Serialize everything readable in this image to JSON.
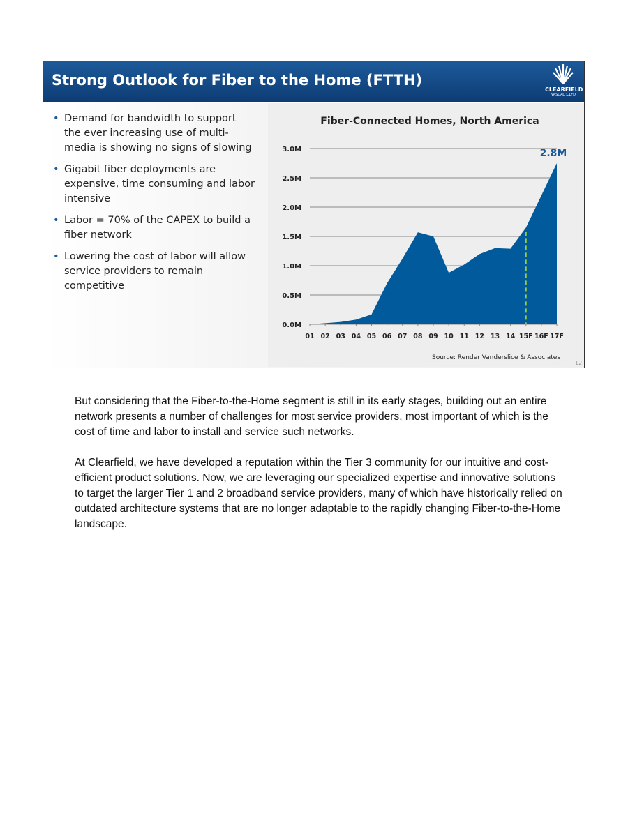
{
  "slide": {
    "title": "Strong Outlook for Fiber to the Home (FTTH)",
    "logo": {
      "name": "CLEARFIELD",
      "ticker": "NASDAQ:CLFD"
    },
    "bullets": [
      "Demand for bandwidth to support the ever increasing use of multi-media is showing no signs of slowing",
      "Gigabit fiber deployments are expensive, time consuming and labor intensive",
      "Labor = 70% of the CAPEX to build a fiber network",
      "Lowering the cost of labor will allow service providers to remain competitive"
    ],
    "source": "Source: Render Vanderslice & Associates",
    "page_number": "12"
  },
  "chart_data": {
    "type": "area",
    "title": "Fiber-Connected Homes, North America",
    "categories": [
      "01",
      "02",
      "03",
      "04",
      "05",
      "06",
      "07",
      "08",
      "09",
      "10",
      "11",
      "12",
      "13",
      "14",
      "15F",
      "16F",
      "17F"
    ],
    "values": [
      0.0,
      0.02,
      0.04,
      0.08,
      0.17,
      0.7,
      1.12,
      1.57,
      1.5,
      0.88,
      1.02,
      1.2,
      1.3,
      1.29,
      1.65,
      2.2,
      2.75
    ],
    "unit": "M",
    "yticks": [
      "0.0M",
      "0.5M",
      "1.0M",
      "1.5M",
      "2.0M",
      "2.5M",
      "3.0M"
    ],
    "ylim": [
      0,
      3.0
    ],
    "annotation": "2.8M",
    "forecast_marker_category": "15F",
    "grid": true,
    "colors": {
      "area": "#005a9c",
      "forecast_line": "#9acd32",
      "annotation": "#1d5a9a"
    }
  },
  "body": {
    "paragraphs": [
      "But considering that the Fiber-to-the-Home segment is still in its early stages, building out an entire network presents a number of challenges for most service providers, most important of which is the cost of time and labor to install and service such networks.",
      "At Clearfield, we have developed a reputation within the Tier 3 community for our intuitive and cost-efficient product solutions. Now, we are leveraging our specialized expertise and innovative solutions to target the larger Tier 1 and 2 broadband service providers, many of which have historically relied on outdated architecture systems that are no longer adaptable to the rapidly changing Fiber-to-the-Home landscape."
    ]
  }
}
